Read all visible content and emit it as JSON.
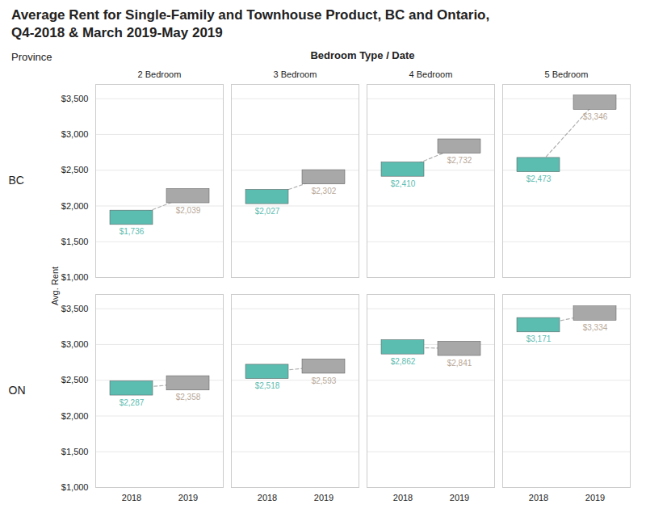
{
  "chart_data": {
    "type": "bar",
    "title": "Average Rent for Single-Family and Townhouse Product, BC and Ontario,\nQ4-2018 & March 2019-May 2019",
    "annotations": [
      "Bedroom Type / Date",
      "Province"
    ],
    "ylabel": "Avg. Rent",
    "categories": [
      "2018",
      "2019"
    ],
    "facets": {
      "rows": [
        "BC",
        "ON"
      ],
      "columns": [
        "2 Bedroom",
        "3 Bedroom",
        "4 Bedroom",
        "5 Bedroom"
      ]
    },
    "panels": [
      {
        "row": "BC",
        "column": "2 Bedroom",
        "values": [
          1736,
          2039
        ],
        "value_labels": [
          "$1,736",
          "$2,039"
        ]
      },
      {
        "row": "BC",
        "column": "3 Bedroom",
        "values": [
          2027,
          2302
        ],
        "value_labels": [
          "$2,027",
          "$2,302"
        ]
      },
      {
        "row": "BC",
        "column": "4 Bedroom",
        "values": [
          2410,
          2732
        ],
        "value_labels": [
          "$2,410",
          "$2,732"
        ]
      },
      {
        "row": "BC",
        "column": "5 Bedroom",
        "values": [
          2473,
          3346
        ],
        "value_labels": [
          "$2,473",
          "$3,346"
        ]
      },
      {
        "row": "ON",
        "column": "2 Bedroom",
        "values": [
          2287,
          2358
        ],
        "value_labels": [
          "$2,287",
          "$2,358"
        ]
      },
      {
        "row": "ON",
        "column": "3 Bedroom",
        "values": [
          2518,
          2593
        ],
        "value_labels": [
          "$2,518",
          "$2,593"
        ]
      },
      {
        "row": "ON",
        "column": "4 Bedroom",
        "values": [
          2862,
          2841
        ],
        "value_labels": [
          "$2,862",
          "$2,841"
        ]
      },
      {
        "row": "ON",
        "column": "5 Bedroom",
        "values": [
          3171,
          3334
        ],
        "value_labels": [
          "$3,171",
          "$3,334"
        ]
      }
    ],
    "colors": [
      "#5bbcb0",
      "#a8a8a8"
    ],
    "label_colors": [
      "#5bbcb0",
      "#b8a898"
    ],
    "ylim": [
      1000,
      3700
    ],
    "yticks": [
      {
        "value": 1000,
        "label": "$1,000"
      },
      {
        "value": 1500,
        "label": "$1,500"
      },
      {
        "value": 2000,
        "label": "$2,000"
      },
      {
        "value": 2500,
        "label": "$2,500"
      },
      {
        "value": 3000,
        "label": "$3,000"
      },
      {
        "value": 3500,
        "label": "$3,500"
      }
    ],
    "grid": true,
    "data_labels": true
  }
}
